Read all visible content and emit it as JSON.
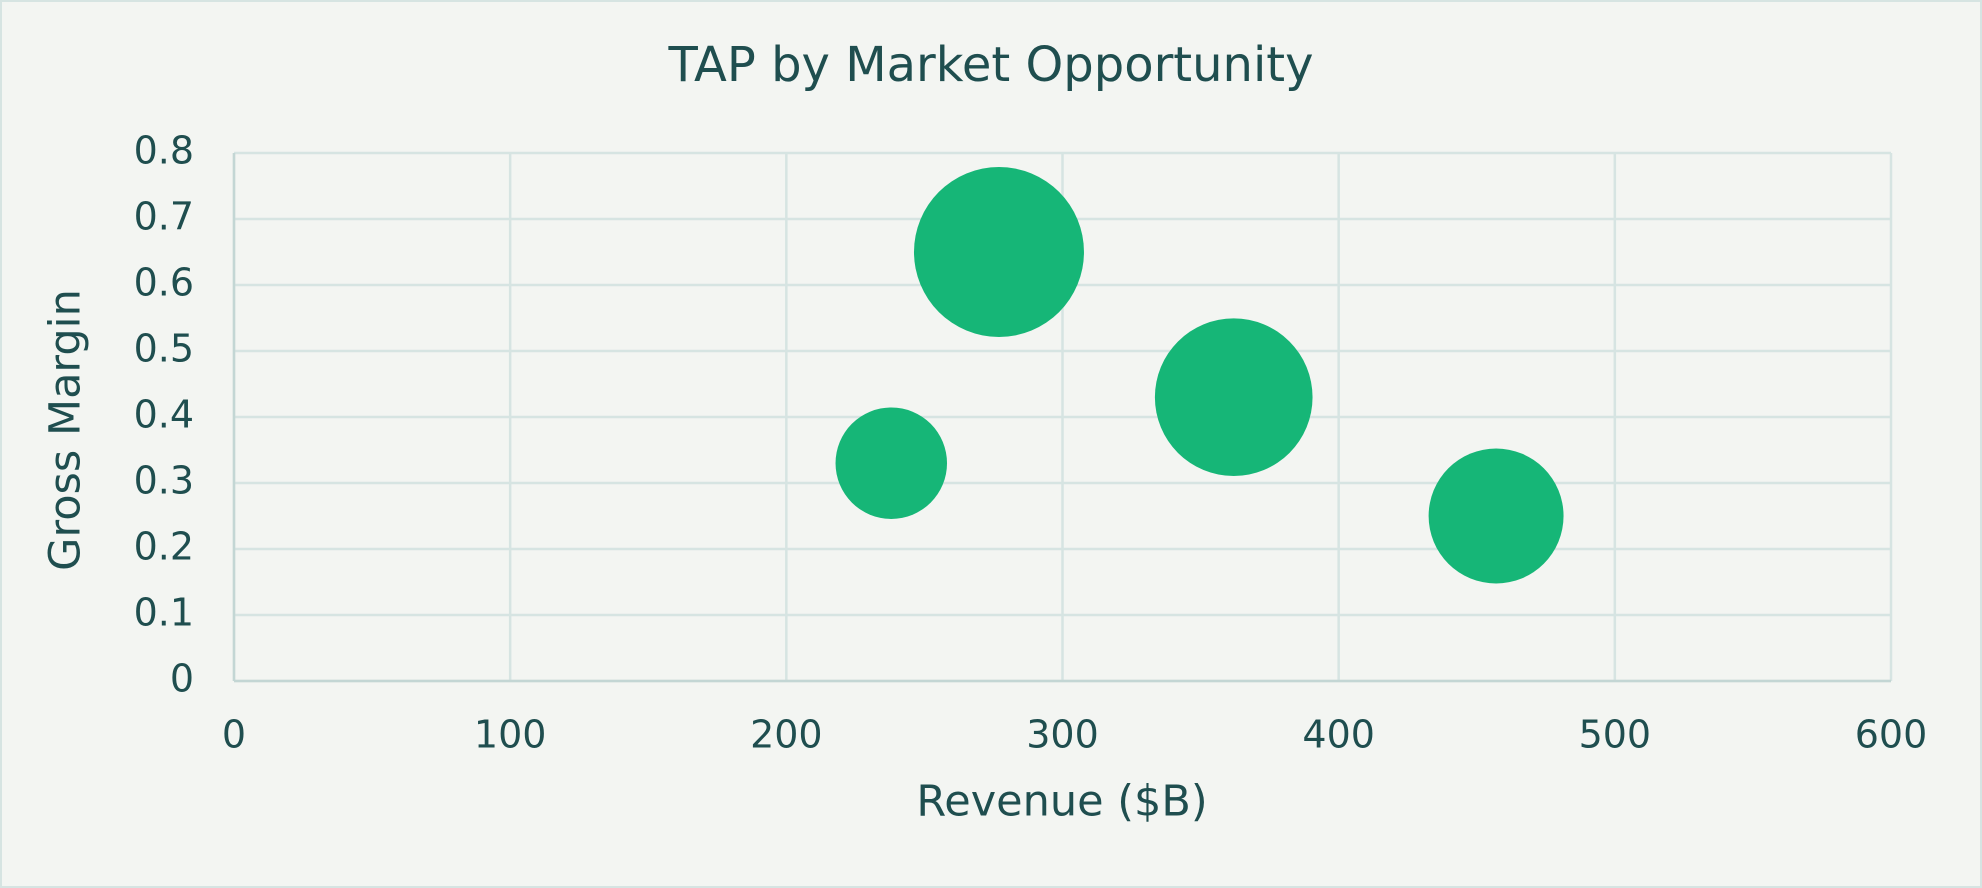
{
  "chart_data": {
    "type": "bubble",
    "title": "TAP by Market Opportunity",
    "x_label": "Revenue ($B)",
    "y_label": "Gross Margin",
    "series": [
      {
        "color": "#16b677",
        "x": [
          238,
          277,
          362,
          457
        ],
        "values": [
          0.33,
          0.65,
          0.43,
          0.25
        ],
        "sizes": [
          43,
          100,
          86,
          63
        ]
      }
    ],
    "xlim": [
      0,
      600
    ],
    "xticks": [
      0,
      100,
      200,
      300,
      400,
      500,
      600
    ],
    "ylim": [
      0,
      0.8
    ],
    "yticks": [
      0,
      0.1,
      0.2,
      0.3,
      0.4,
      0.5,
      0.6,
      0.7,
      0.8
    ],
    "grid": true
  }
}
